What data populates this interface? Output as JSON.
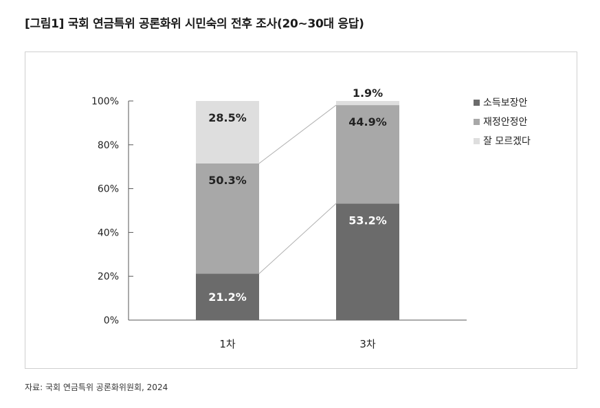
{
  "figure": {
    "title": "[그림1] 국회 연금특위 공론화위 시민숙의 전후 조사(20~30대 응답)",
    "source": "자료: 국회 연금특위 공론화위원회, 2024"
  },
  "chart_data": {
    "type": "bar",
    "stacked": true,
    "categories": [
      "1차",
      "3차"
    ],
    "series": [
      {
        "name": "소득보장안",
        "values": [
          21.2,
          53.2
        ],
        "labels": [
          "21.2%",
          "53.2%"
        ],
        "color": "#6b6b6b",
        "label_color": "#ffffff"
      },
      {
        "name": "재정안정안",
        "values": [
          50.3,
          44.9
        ],
        "labels": [
          "50.3%",
          "44.9%"
        ],
        "color": "#a8a8a8",
        "label_color": "#222222"
      },
      {
        "name": "잘 모르겠다",
        "values": [
          28.5,
          1.9
        ],
        "labels": [
          "28.5%",
          "1.9%"
        ],
        "color": "#dedede",
        "label_color": "#222222"
      }
    ],
    "yticks": [
      "0%",
      "20%",
      "40%",
      "60%",
      "80%",
      "100%"
    ],
    "ylim": [
      0,
      100
    ],
    "legend_position": "right",
    "connector_color": "#b0b0b0",
    "grid": false
  }
}
